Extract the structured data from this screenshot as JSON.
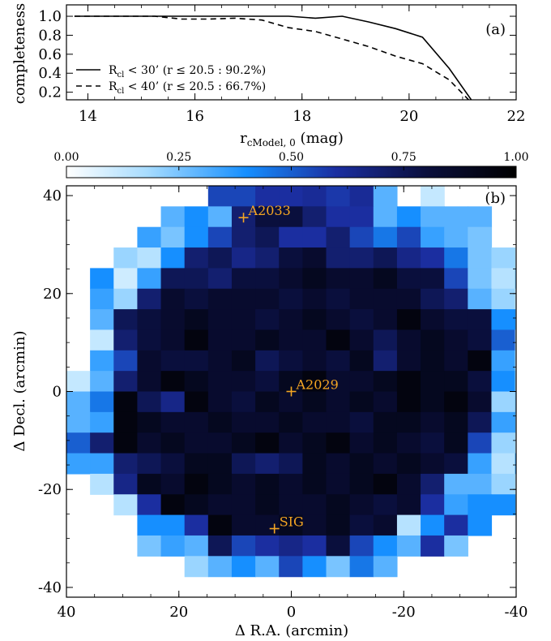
{
  "chart_data": [
    {
      "type": "line",
      "panel_label": "(a)",
      "xlabel_main": "r",
      "xlabel_sub": "cModel, 0",
      "xlabel_unit": "(mag)",
      "ylabel": "completeness",
      "xlim": [
        13.6,
        22
      ],
      "ylim": [
        0.12,
        1.12
      ],
      "xticks": [
        "14",
        "16",
        "18",
        "20",
        "22"
      ],
      "xtick_values": [
        14,
        16,
        18,
        20,
        22
      ],
      "yticks": [
        "0.2",
        "0.4",
        "0.6",
        "0.8",
        "1.0"
      ],
      "ytick_values": [
        0.2,
        0.4,
        0.6,
        0.8,
        1.0
      ],
      "series": [
        {
          "name": "R",
          "name_sub": "cl",
          "name_rest": " < 30’ (r ≤ 20.5 : 90.2%)",
          "style": "solid",
          "x": [
            13.75,
            14.25,
            14.75,
            15.25,
            15.75,
            16.25,
            16.75,
            17.25,
            17.75,
            18.25,
            18.75,
            19.25,
            19.75,
            20.25,
            20.75,
            21.25
          ],
          "y": [
            1.0,
            1.0,
            1.0,
            1.0,
            1.0,
            1.0,
            1.0,
            1.0,
            1.0,
            0.98,
            1.0,
            0.94,
            0.87,
            0.78,
            0.45,
            0.05
          ]
        },
        {
          "name": "R",
          "name_sub": "cl",
          "name_rest": " < 40’ (r ≤ 20.5 : 66.7%)",
          "style": "dashed",
          "x": [
            13.75,
            14.25,
            14.75,
            15.25,
            15.75,
            16.25,
            16.75,
            17.25,
            17.75,
            18.25,
            18.75,
            19.25,
            19.75,
            20.25,
            20.75,
            21.25
          ],
          "y": [
            1.0,
            1.0,
            1.0,
            1.0,
            0.97,
            0.97,
            0.98,
            0.96,
            0.88,
            0.84,
            0.76,
            0.68,
            0.58,
            0.5,
            0.33,
            0.04
          ]
        }
      ]
    },
    {
      "type": "heatmap",
      "panel_label": "(b)",
      "xlabel": "Δ R.A. (arcmin)",
      "ylabel": "Δ Decl. (arcmin)",
      "xlim": [
        40,
        -40
      ],
      "ylim": [
        -42,
        42
      ],
      "xticks": [
        "40",
        "20",
        "0",
        "-20",
        "-40"
      ],
      "xtick_values": [
        40,
        20,
        0,
        -20,
        -40
      ],
      "yticks": [
        "40",
        "20",
        "0",
        "-20",
        "-40"
      ],
      "ytick_values": [
        40,
        20,
        0,
        -20,
        -40
      ],
      "colorbar": {
        "range": [
          0,
          1
        ],
        "ticks": [
          "0.00",
          "0.25",
          "0.50",
          "0.75",
          "1.00"
        ],
        "tick_values": [
          0,
          0.25,
          0.5,
          0.75,
          1.0
        ]
      },
      "grid_ra_edges_start": 40,
      "grid_dec_edges_start": 42,
      "cell_size_arcmin": 4.2,
      "grid": [
        [
          null,
          null,
          null,
          null,
          null,
          null,
          0.55,
          0.55,
          0.6,
          0.6,
          0.62,
          0.58,
          0.62,
          0.3,
          null,
          0.12,
          null,
          null,
          null,
          null
        ],
        [
          null,
          null,
          null,
          null,
          0.3,
          0.4,
          0.3,
          0.7,
          0.8,
          0.8,
          0.7,
          0.6,
          0.6,
          0.3,
          0.4,
          0.3,
          0.3,
          0.3,
          null,
          null
        ],
        [
          null,
          null,
          null,
          0.35,
          0.25,
          0.4,
          0.55,
          0.7,
          0.75,
          0.6,
          0.6,
          0.7,
          0.55,
          0.45,
          0.55,
          0.35,
          0.3,
          0.25,
          null,
          null
        ],
        [
          null,
          null,
          0.2,
          0.15,
          0.4,
          0.7,
          0.75,
          0.65,
          0.7,
          0.8,
          0.85,
          0.7,
          0.7,
          0.75,
          0.65,
          0.6,
          0.45,
          0.25,
          0.2,
          null
        ],
        [
          null,
          0.4,
          0.1,
          0.35,
          0.75,
          0.75,
          0.7,
          0.8,
          0.8,
          0.85,
          0.9,
          0.85,
          0.85,
          0.9,
          0.8,
          0.8,
          0.55,
          0.25,
          0.15,
          0.25
        ],
        [
          null,
          0.35,
          0.2,
          0.7,
          0.85,
          0.8,
          0.85,
          0.85,
          0.85,
          0.8,
          0.85,
          0.8,
          0.85,
          0.85,
          0.85,
          0.75,
          0.7,
          0.3,
          0.2,
          0.1
        ],
        [
          null,
          0.3,
          0.75,
          0.8,
          0.85,
          0.9,
          0.85,
          0.85,
          0.8,
          0.85,
          0.9,
          0.85,
          0.8,
          0.85,
          0.95,
          0.85,
          0.8,
          0.8,
          0.4,
          null
        ],
        [
          null,
          0.12,
          0.7,
          0.8,
          0.85,
          0.95,
          0.85,
          0.85,
          0.9,
          0.85,
          0.85,
          0.95,
          0.85,
          0.75,
          0.85,
          0.9,
          0.85,
          0.8,
          0.5,
          0.12
        ],
        [
          null,
          0.35,
          0.55,
          0.85,
          0.8,
          0.8,
          0.85,
          0.9,
          0.75,
          0.8,
          0.85,
          0.8,
          0.9,
          0.7,
          0.85,
          0.9,
          0.85,
          0.95,
          0.35,
          0.1
        ],
        [
          0.12,
          0.3,
          0.7,
          0.85,
          0.95,
          0.9,
          0.85,
          0.85,
          0.8,
          0.9,
          0.95,
          0.85,
          0.85,
          0.9,
          0.95,
          0.9,
          0.9,
          0.8,
          0.4,
          0.15
        ],
        [
          0.3,
          0.45,
          0.95,
          0.75,
          0.65,
          0.95,
          0.85,
          0.8,
          0.9,
          0.85,
          0.9,
          0.85,
          0.9,
          0.85,
          0.95,
          0.9,
          0.95,
          0.85,
          0.2,
          0.25
        ],
        [
          0.3,
          0.35,
          0.95,
          0.9,
          0.85,
          0.85,
          0.9,
          0.85,
          0.85,
          0.9,
          0.85,
          0.85,
          0.8,
          0.9,
          0.9,
          0.85,
          0.9,
          0.75,
          0.35,
          null
        ],
        [
          0.5,
          0.7,
          0.95,
          0.85,
          0.9,
          0.85,
          0.85,
          0.9,
          0.95,
          0.85,
          0.9,
          0.95,
          0.85,
          0.9,
          0.85,
          0.8,
          0.9,
          0.55,
          0.2,
          null
        ],
        [
          0.35,
          0.35,
          0.7,
          0.75,
          0.8,
          0.9,
          0.9,
          0.75,
          0.7,
          0.75,
          0.9,
          0.85,
          0.9,
          0.85,
          0.9,
          0.85,
          0.8,
          0.35,
          0.15,
          0.35
        ],
        [
          null,
          0.15,
          0.65,
          0.9,
          0.85,
          0.95,
          0.9,
          0.85,
          0.9,
          0.85,
          0.9,
          0.85,
          0.9,
          0.95,
          0.85,
          0.7,
          0.3,
          0.3,
          0.2,
          null
        ],
        [
          null,
          null,
          0.15,
          0.6,
          0.95,
          0.9,
          0.85,
          0.85,
          0.9,
          0.85,
          0.85,
          0.9,
          0.85,
          0.8,
          0.85,
          0.6,
          0.35,
          0.4,
          0.4,
          null
        ],
        [
          null,
          null,
          null,
          0.4,
          0.4,
          0.6,
          0.95,
          0.85,
          0.85,
          0.9,
          0.85,
          0.9,
          0.8,
          0.85,
          0.15,
          0.4,
          0.6,
          0.4,
          null,
          null
        ],
        [
          null,
          null,
          null,
          0.25,
          0.35,
          0.3,
          0.75,
          0.55,
          0.6,
          0.65,
          0.6,
          0.8,
          0.55,
          0.4,
          0.3,
          0.6,
          0.25,
          null,
          null,
          null
        ],
        [
          null,
          null,
          null,
          null,
          null,
          0.2,
          0.3,
          0.4,
          0.3,
          0.55,
          0.4,
          0.25,
          0.45,
          0.3,
          null,
          null,
          null,
          null,
          null,
          null
        ]
      ],
      "markers": [
        {
          "label": "A2033",
          "ra": 8.5,
          "dec": 35.5
        },
        {
          "label": "A2029",
          "ra": 0.0,
          "dec": 0.0
        },
        {
          "label": "SIG",
          "ra": 3.0,
          "dec": -28.0
        }
      ]
    }
  ]
}
